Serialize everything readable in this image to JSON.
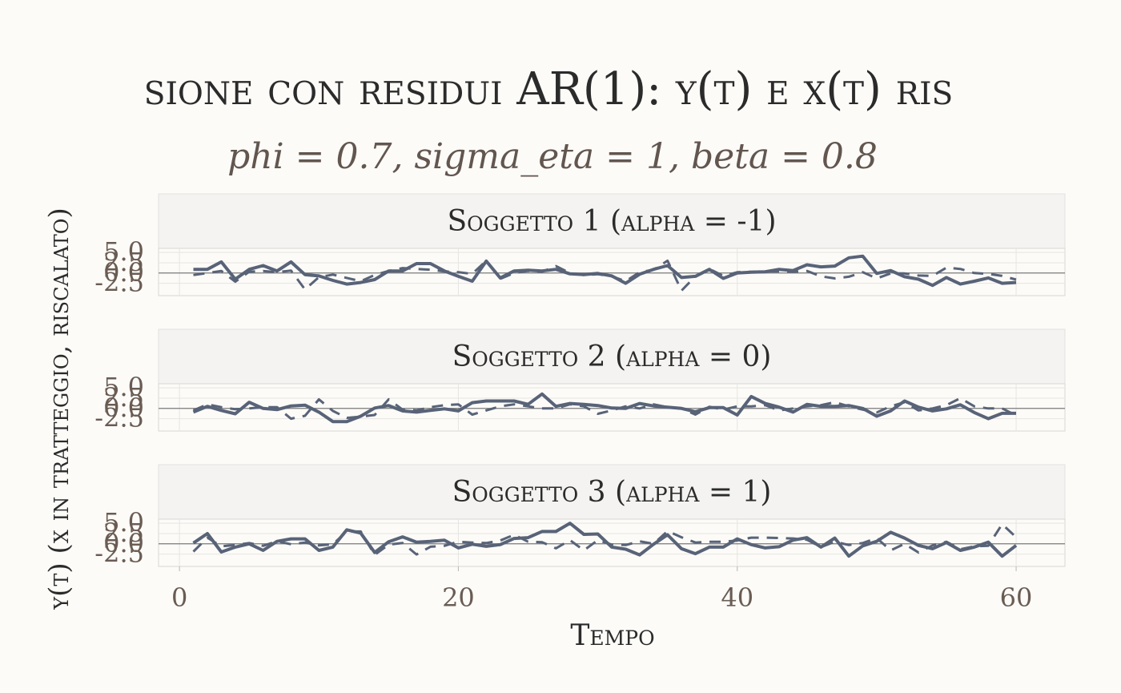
{
  "chart_data": {
    "type": "line",
    "title": "sione con residui AR(1): y(t) e x(t) ris",
    "subtitle": "phi = 0.7, sigma_eta = 1, beta = 0.8",
    "xlabel": "Tempo",
    "ylabel": "y(t) (x in tratteggio, riscalato)",
    "xlim": [
      -1.5,
      63.5
    ],
    "x_ticks": [
      0,
      20,
      40,
      60
    ],
    "x_tick_labels": [
      "0",
      "20",
      "40",
      "60"
    ],
    "ylim": [
      -5.5,
      6.0
    ],
    "y_ticks": [
      -2.5,
      0.0,
      2.5,
      5.0
    ],
    "y_tick_labels": [
      "-2.5",
      "0.0",
      "2.5",
      "5.0"
    ],
    "grid": true,
    "legend": "none",
    "colors": {
      "line": "#586378",
      "strip_bg": "#f4f3f1",
      "axis_text": "#6a5c53",
      "title": "#2b2b2b",
      "subtitle": "#62564f",
      "background": "#fcfbf8"
    },
    "x": [
      1,
      2,
      3,
      4,
      5,
      6,
      7,
      8,
      9,
      10,
      11,
      12,
      13,
      14,
      15,
      16,
      17,
      18,
      19,
      20,
      21,
      22,
      23,
      24,
      25,
      26,
      27,
      28,
      29,
      30,
      31,
      32,
      33,
      34,
      35,
      36,
      37,
      38,
      39,
      40,
      41,
      42,
      43,
      44,
      45,
      46,
      47,
      48,
      49,
      50,
      51,
      52,
      53,
      54,
      55,
      56,
      57,
      58,
      59,
      60
    ],
    "panels": [
      {
        "strip": "Soggetto 1 (alpha = -1)",
        "series": [
          {
            "style": "solid",
            "values": [
              0.9,
              0.9,
              2.7,
              -1.5,
              0.9,
              1.8,
              0.5,
              2.7,
              -0.4,
              -0.7,
              -1.8,
              -2.7,
              -2.3,
              -1.6,
              0.5,
              0.5,
              2.3,
              2.3,
              0.5,
              -0.8,
              -2.0,
              2.9,
              -1.2,
              0.5,
              0.7,
              0.5,
              0.9,
              -0.2,
              -0.4,
              -0.1,
              -0.7,
              -2.5,
              -0.3,
              0.9,
              1.8,
              -1.1,
              -0.8,
              0.9,
              -1.3,
              0.0,
              0.2,
              0.3,
              0.9,
              0.6,
              2.0,
              1.5,
              1.7,
              3.7,
              4.1,
              -0.1,
              0.6,
              -0.9,
              -1.5,
              -3.0,
              -1.1,
              -2.7,
              -2.0,
              -1.2,
              -2.5,
              -2.3
            ]
          },
          {
            "style": "dashed",
            "values": [
              -0.5,
              0.0,
              0.5,
              -2.1,
              0.3,
              0.5,
              0.2,
              0.6,
              -4.0,
              -1.0,
              -0.4,
              -1.2,
              -2.0,
              -0.5,
              0.5,
              1.2,
              1.0,
              0.8,
              0.4,
              0.2,
              -0.2,
              3.0,
              -1.4,
              0.0,
              0.5,
              0.3,
              1.7,
              0.0,
              -0.5,
              -0.3,
              -0.8,
              -2.0,
              0.2,
              0.8,
              3.0,
              -4.3,
              -0.8,
              1.0,
              -0.7,
              0.2,
              0.3,
              0.4,
              0.4,
              0.3,
              0.5,
              -0.8,
              -1.3,
              -0.9,
              0.2,
              -1.3,
              -0.1,
              -0.1,
              -0.6,
              -0.7,
              1.3,
              1.0,
              0.0,
              -0.2,
              -0.7,
              -1.6
            ]
          }
        ]
      },
      {
        "strip": "Soggetto 2 (alpha = 0)",
        "series": [
          {
            "style": "solid",
            "values": [
              -0.9,
              0.5,
              -0.5,
              -1.3,
              1.5,
              0.0,
              -0.3,
              0.6,
              0.8,
              -0.9,
              -3.2,
              -3.2,
              -1.9,
              0.1,
              0.7,
              -0.6,
              -0.9,
              -0.5,
              -0.1,
              -0.6,
              1.4,
              1.8,
              1.8,
              1.8,
              1.0,
              3.5,
              0.5,
              1.2,
              1.0,
              0.7,
              0.1,
              0.0,
              1.2,
              0.6,
              0.3,
              0.0,
              -0.8,
              0.2,
              0.2,
              -1.6,
              2.9,
              1.2,
              0.3,
              -0.9,
              1.0,
              0.5,
              0.5,
              0.7,
              0.0,
              -1.9,
              -0.6,
              1.8,
              0.3,
              -0.6,
              -0.1,
              0.9,
              -1.0,
              -2.5,
              -1.2,
              -1.2
            ]
          },
          {
            "style": "dashed",
            "values": [
              -0.5,
              1.0,
              0.3,
              -0.2,
              0.0,
              0.3,
              0.3,
              -2.5,
              -1.8,
              2.2,
              -0.6,
              -2.3,
              -2.0,
              -1.6,
              2.2,
              -0.3,
              -0.5,
              0.3,
              0.8,
              1.0,
              -1.5,
              -0.5,
              0.5,
              1.0,
              0.5,
              0.0,
              0.0,
              1.0,
              0.5,
              -1.3,
              -0.5,
              0.5,
              0.0,
              1.0,
              0.3,
              0.0,
              -1.5,
              0.4,
              -0.3,
              0.5,
              0.5,
              0.8,
              -0.5,
              0.0,
              0.5,
              0.8,
              1.5,
              0.5,
              -0.3,
              -1.0,
              0.5,
              1.5,
              -0.5,
              0.0,
              0.8,
              2.5,
              0.5,
              0.0,
              0.0,
              -1.7
            ]
          }
        ]
      },
      {
        "strip": "Soggetto 3 (alpha = 1)",
        "series": [
          {
            "style": "solid",
            "values": [
              0.2,
              2.5,
              -2.0,
              -0.8,
              0.0,
              -1.6,
              0.6,
              1.2,
              1.2,
              -1.6,
              -0.8,
              3.4,
              2.6,
              -2.1,
              0.5,
              1.7,
              0.4,
              0.6,
              0.9,
              -1.0,
              -0.1,
              -0.6,
              -0.2,
              1.3,
              1.5,
              3.0,
              3.0,
              5.0,
              2.3,
              2.4,
              -0.8,
              -1.3,
              -2.7,
              -0.1,
              2.2,
              -1.2,
              -2.4,
              -0.8,
              -0.8,
              1.2,
              -0.2,
              -1.0,
              -0.7,
              0.9,
              1.5,
              -0.8,
              1.4,
              -3.0,
              -0.5,
              0.6,
              2.8,
              1.4,
              -0.4,
              -1.2,
              0.3,
              -1.6,
              -0.8,
              0.4,
              -3.0,
              -0.4
            ]
          },
          {
            "style": "dashed",
            "values": [
              -1.9,
              1.5,
              -0.6,
              -0.3,
              0.2,
              -0.5,
              0.6,
              -0.1,
              0.3,
              -0.4,
              -0.1,
              3.0,
              3.0,
              -2.7,
              -0.2,
              0.2,
              -2.6,
              -0.7,
              -0.5,
              0.5,
              0.3,
              0.2,
              0.8,
              2.2,
              0.5,
              0.4,
              -1.1,
              0.9,
              -1.6,
              0.9,
              -0.2,
              -0.3,
              0.6,
              0.0,
              3.1,
              1.6,
              0.3,
              0.5,
              0.5,
              0.8,
              1.5,
              1.5,
              1.4,
              1.3,
              1.0,
              -0.8,
              0.5,
              -0.3,
              0.2,
              1.4,
              -1.6,
              0.0,
              -2.1,
              -0.4,
              0.5,
              -1.3,
              -0.6,
              -0.5,
              4.8,
              1.6
            ]
          }
        ]
      }
    ]
  }
}
